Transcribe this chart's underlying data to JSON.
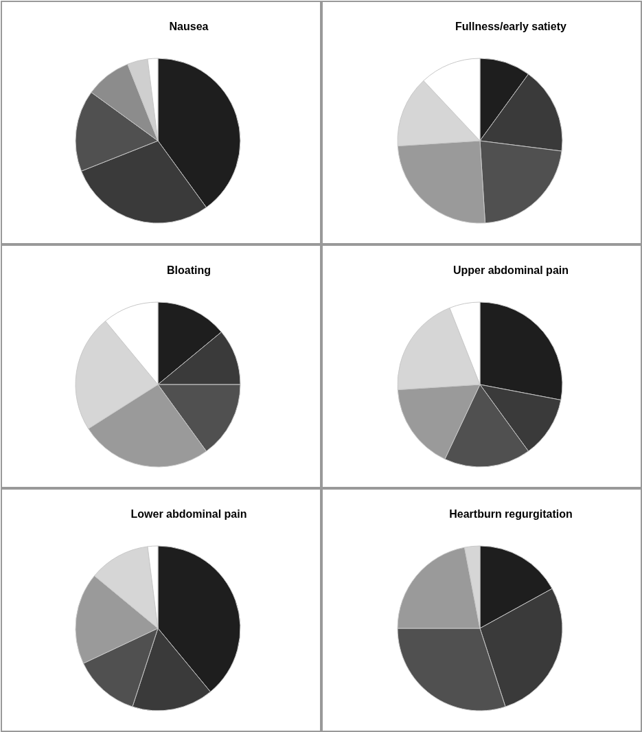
{
  "chart_data": [
    {
      "type": "pie",
      "title": "Nausea",
      "categories": [
        null,
        null,
        null,
        null,
        null,
        null
      ],
      "values": [
        40,
        29,
        16,
        9,
        4,
        2
      ],
      "colors": [
        "#1e1e1e",
        "#3a3a3a",
        "#505050",
        "#8c8c8c",
        "#cfcfcf",
        "#ffffff"
      ]
    },
    {
      "type": "pie",
      "title": "Fullness/early satiety",
      "categories": [
        null,
        null,
        null,
        null,
        null,
        null
      ],
      "values": [
        10,
        17,
        22,
        25,
        14,
        12
      ],
      "colors": [
        "#1e1e1e",
        "#3a3a3a",
        "#505050",
        "#9a9a9a",
        "#d6d6d6",
        "#ffffff"
      ]
    },
    {
      "type": "pie",
      "title": "Bloating",
      "categories": [
        null,
        null,
        null,
        null,
        null,
        null
      ],
      "values": [
        14,
        11,
        15,
        26,
        23,
        11
      ],
      "colors": [
        "#1e1e1e",
        "#3a3a3a",
        "#505050",
        "#9a9a9a",
        "#d6d6d6",
        "#ffffff"
      ]
    },
    {
      "type": "pie",
      "title": "Upper abdominal pain",
      "categories": [
        null,
        null,
        null,
        null,
        null,
        null
      ],
      "values": [
        28,
        12,
        17,
        17,
        20,
        6
      ],
      "colors": [
        "#1e1e1e",
        "#3a3a3a",
        "#505050",
        "#9a9a9a",
        "#d6d6d6",
        "#ffffff"
      ]
    },
    {
      "type": "pie",
      "title": "Lower abdominal pain",
      "categories": [
        null,
        null,
        null,
        null,
        null,
        null
      ],
      "values": [
        39,
        16,
        13,
        18,
        12,
        2
      ],
      "colors": [
        "#1e1e1e",
        "#3a3a3a",
        "#505050",
        "#9a9a9a",
        "#d6d6d6",
        "#ffffff"
      ]
    },
    {
      "type": "pie",
      "title": "Heartburn regurgitation",
      "categories": [
        null,
        null,
        null,
        null,
        null
      ],
      "values": [
        17,
        28,
        30,
        22,
        3
      ],
      "colors": [
        "#1e1e1e",
        "#3a3a3a",
        "#505050",
        "#9a9a9a",
        "#d6d6d6"
      ]
    }
  ]
}
